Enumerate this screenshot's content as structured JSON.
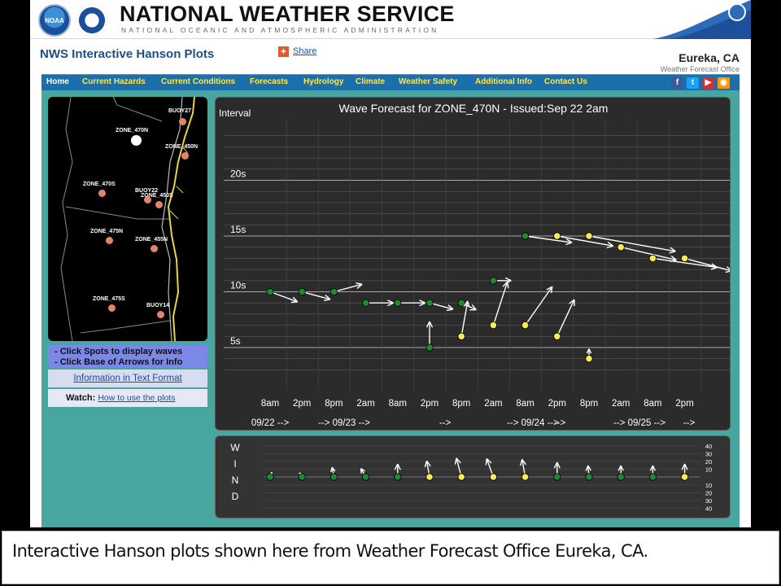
{
  "header": {
    "noaa_logo_text": "NOAA",
    "title": "NATIONAL WEATHER SERVICE",
    "subtitle": "NATIONAL OCEANIC AND ATMOSPHERIC ADMINISTRATION"
  },
  "subbar": {
    "page_title": "NWS Interactive Hanson Plots",
    "share_icon": "+",
    "share_label": "Share",
    "office_name": "Eureka, CA",
    "office_sub": "Weather Forecast Office"
  },
  "nav": {
    "items": [
      "Home",
      "Current Hazards",
      "Current Conditions",
      "Forecasts",
      "Hydrology",
      "Climate",
      "Weather Safety",
      "Additional Info",
      "Contact Us"
    ],
    "social": [
      {
        "icon": "facebook-icon",
        "glyph": "f",
        "color": "#3b5998"
      },
      {
        "icon": "twitter-icon",
        "glyph": "t",
        "color": "#1da1f2"
      },
      {
        "icon": "youtube-icon",
        "glyph": "▶",
        "color": "#d32f2f"
      },
      {
        "icon": "rss-icon",
        "glyph": "◉",
        "color": "#f39c12"
      }
    ]
  },
  "map": {
    "zones": [
      {
        "label": "BUOY27",
        "type": "buoy"
      },
      {
        "label": "ZONE_470N",
        "type": "selected"
      },
      {
        "label": "ZONE_450N",
        "type": "zone"
      },
      {
        "label": "ZONE_470S",
        "type": "zone"
      },
      {
        "label": "BUOY22",
        "type": "buoy"
      },
      {
        "label": "ZONE_450S",
        "type": "zone"
      },
      {
        "label": "ZONE_475N",
        "type": "zone"
      },
      {
        "label": "ZONE_455N",
        "type": "zone"
      },
      {
        "label": "ZONE_475S",
        "type": "zone"
      },
      {
        "label": "BUOY14",
        "type": "buoy"
      }
    ]
  },
  "sidebar": {
    "info_line1": "- Click Spots to display waves",
    "info_line2": "- Click Base of Arrows for Info",
    "text_link": "Information in Text Format",
    "watch_label": "Watch:",
    "watch_link": "How to use the plots"
  },
  "chart_data": [
    {
      "type": "scatter",
      "title": "Wave Forecast for ZONE_470N - Issued:Sep 22 2am",
      "ylabel": "Interval",
      "yticks": [
        "5s",
        "10s",
        "15s",
        "20s"
      ],
      "ylim": [
        2,
        25
      ],
      "xticks": [
        "8am",
        "2pm",
        "8pm",
        "2am",
        "8am",
        "2pm",
        "8pm",
        "2am",
        "8am",
        "2pm",
        "8pm",
        "2am",
        "8am",
        "2pm"
      ],
      "date_labels": [
        "09/22 -->",
        "--> 09/23 -->",
        "-->",
        "--> 09/24 -->",
        "-->",
        "--> 09/25 -->",
        "-->"
      ],
      "grid": true,
      "arrow_direction_convention": "degrees clockwise from up (north)",
      "series": [
        {
          "color": "#1e8a2a",
          "points": [
            {
              "t": 0,
              "period": 10,
              "dir": 110,
              "len": 36
            },
            {
              "t": 1,
              "period": 10,
              "dir": 105,
              "len": 36
            },
            {
              "t": 2,
              "period": 10,
              "dir": 75,
              "len": 36
            },
            {
              "t": 3,
              "period": 9,
              "dir": 90,
              "len": 34
            },
            {
              "t": 4,
              "period": 9,
              "dir": 90,
              "len": 34
            },
            {
              "t": 5,
              "period": 9,
              "dir": 105,
              "len": 30
            },
            {
              "t": 5,
              "period": 5,
              "dir": 0,
              "len": 32
            },
            {
              "t": 6,
              "period": 9,
              "dir": 115,
              "len": 20
            },
            {
              "t": 7,
              "period": 11,
              "dir": 90,
              "len": 22
            },
            {
              "t": 8,
              "period": 15,
              "dir": 98,
              "len": 58
            }
          ]
        },
        {
          "color": "#f4ee55",
          "points": [
            {
              "t": 6,
              "period": 6,
              "dir": 10,
              "len": 44
            },
            {
              "t": 7,
              "period": 7,
              "dir": 18,
              "len": 56
            },
            {
              "t": 8,
              "period": 7,
              "dir": 35,
              "len": 58
            },
            {
              "t": 9,
              "period": 15,
              "dir": 100,
              "len": 70
            },
            {
              "t": 9,
              "period": 6,
              "dir": 25,
              "len": 50
            },
            {
              "t": 10,
              "period": 15,
              "dir": 100,
              "len": 108
            },
            {
              "t": 10,
              "period": 4,
              "dir": 0,
              "len": 12
            },
            {
              "t": 11,
              "period": 14,
              "dir": 103,
              "len": 70
            },
            {
              "t": 12,
              "period": 13,
              "dir": 98,
              "len": 80
            },
            {
              "t": 13,
              "period": 13,
              "dir": 105,
              "len": 60
            }
          ]
        }
      ]
    },
    {
      "type": "scatter",
      "ylabel": "WIND",
      "yticks_up": [
        "40",
        "30",
        "20",
        "10"
      ],
      "yticks_down": [
        "10",
        "20",
        "30",
        "40"
      ],
      "series": [
        {
          "color": "#1e8a2a",
          "points": [
            {
              "t": 0,
              "dir": 20,
              "len": 6
            },
            {
              "t": 1,
              "dir": 330,
              "len": 6
            },
            {
              "t": 2,
              "dir": 350,
              "len": 12
            },
            {
              "t": 3,
              "dir": 330,
              "len": 12
            },
            {
              "t": 4,
              "dir": 0,
              "len": 16
            }
          ]
        },
        {
          "color": "#f4ee55",
          "points": [
            {
              "t": 5,
              "dir": 350,
              "len": 20
            },
            {
              "t": 6,
              "dir": 345,
              "len": 24
            },
            {
              "t": 7,
              "dir": 340,
              "len": 24
            },
            {
              "t": 8,
              "dir": 350,
              "len": 22
            }
          ]
        },
        {
          "color": "#1e8a2a",
          "points": [
            {
              "t": 9,
              "dir": 0,
              "len": 18
            },
            {
              "t": 10,
              "dir": 355,
              "len": 14
            },
            {
              "t": 11,
              "dir": 0,
              "len": 14
            },
            {
              "t": 12,
              "dir": 0,
              "len": 14
            }
          ]
        },
        {
          "color": "#f4ee55",
          "points": [
            {
              "t": 13,
              "dir": 0,
              "len": 16
            }
          ]
        }
      ]
    }
  ],
  "caption": "Interactive Hanson plots shown here from Weather Forecast Office Eureka, CA."
}
